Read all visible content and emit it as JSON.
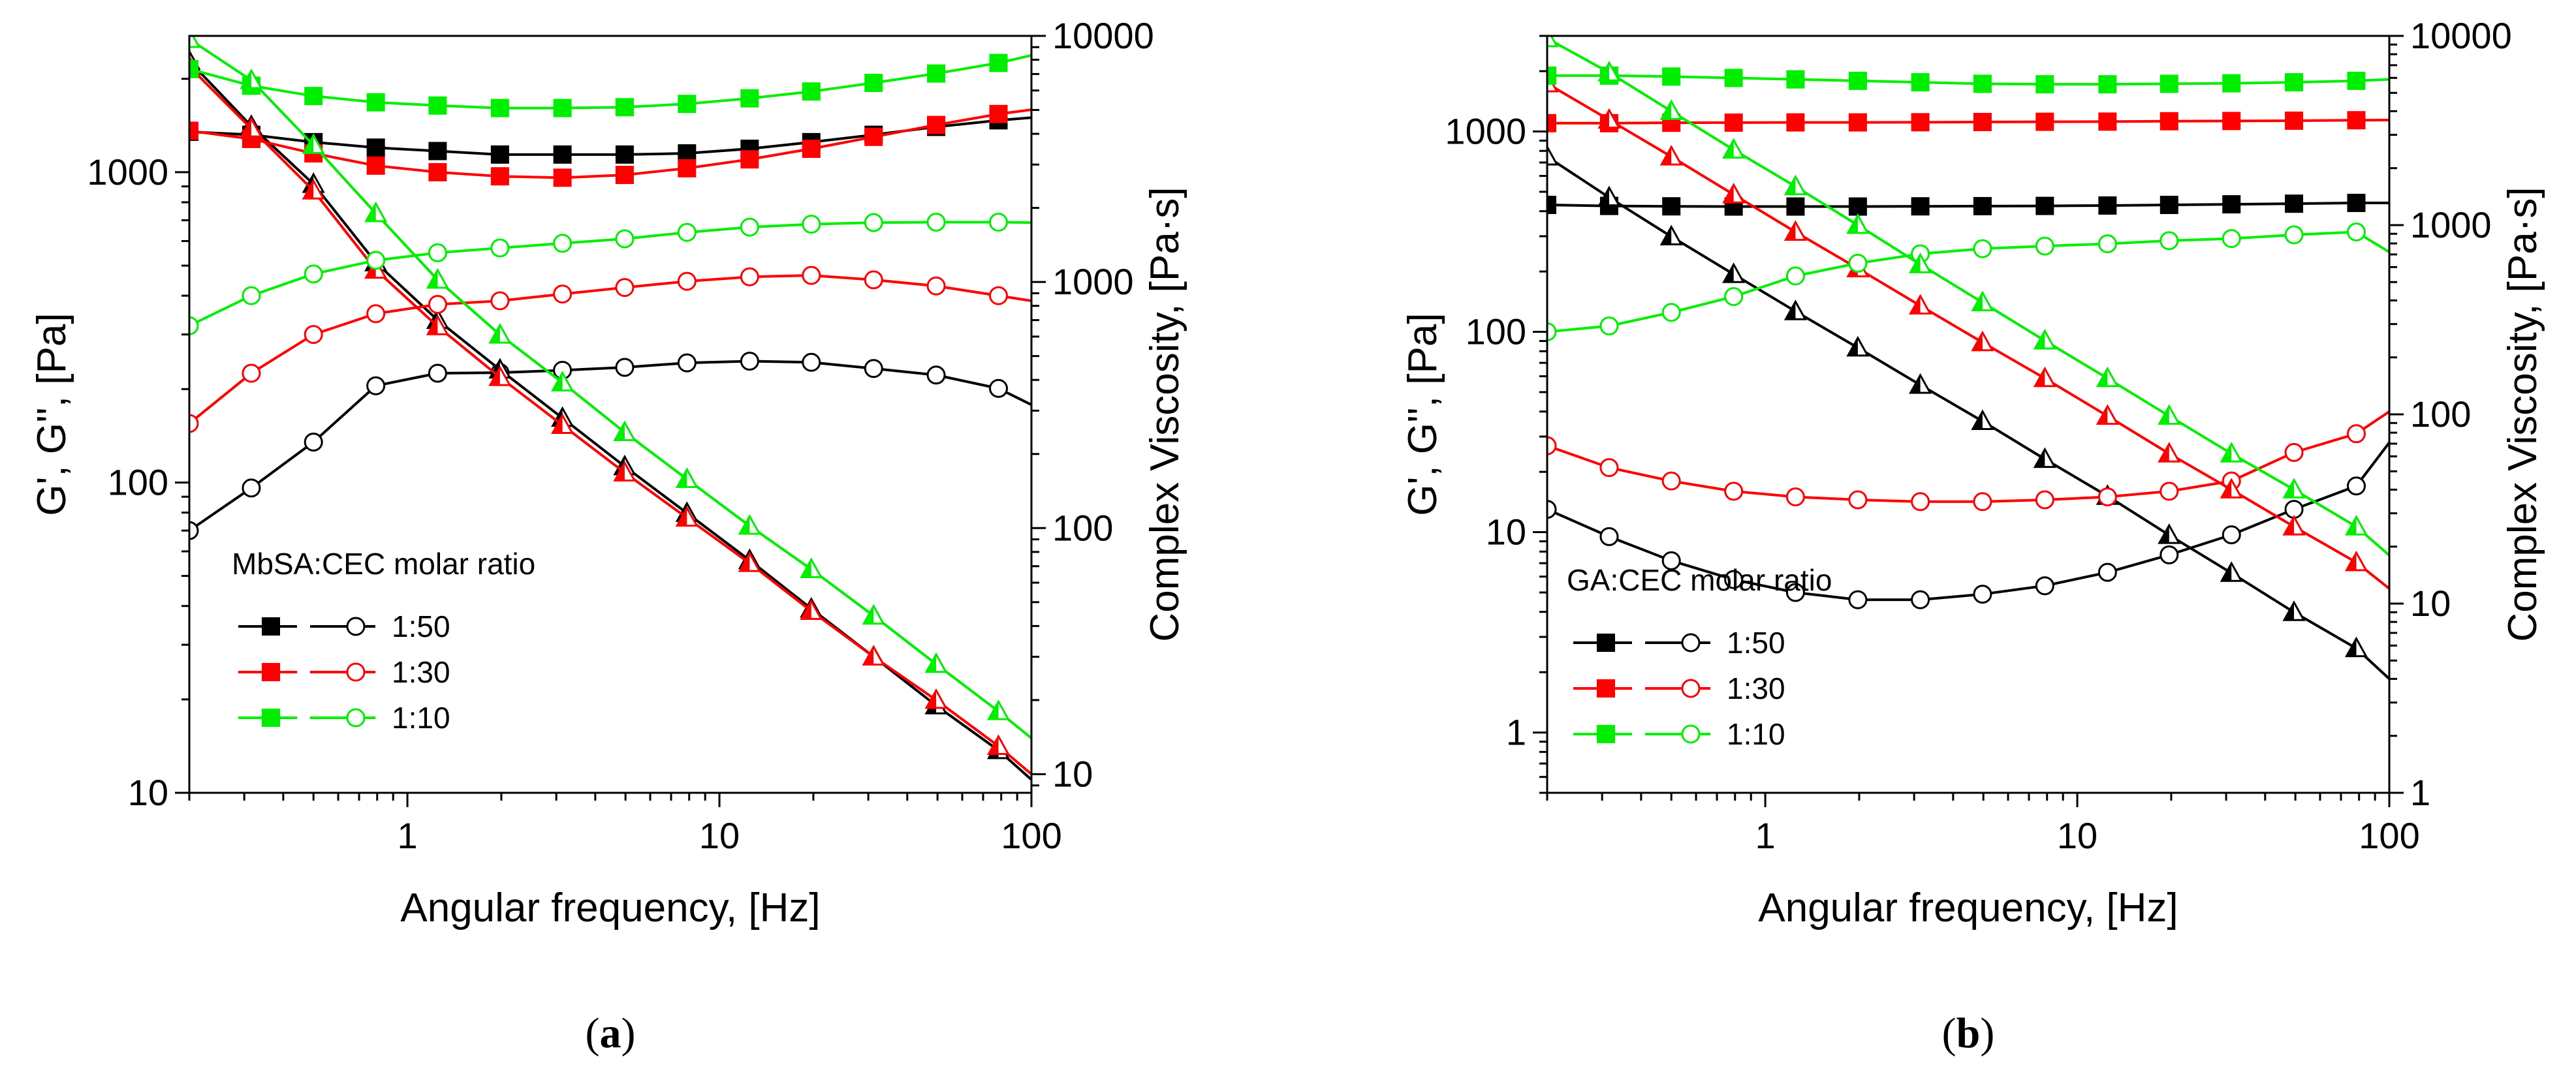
{
  "chart_data": [
    {
      "panel_label": "a",
      "type": "line",
      "title": "",
      "xlabel": "Angular frequency, [Hz]",
      "ylabel": "G', G'', [Pa]",
      "y2label": "Complex Viscosity, [Pa·s]",
      "x_scale": "log",
      "y_scale": "log",
      "y2_scale": "log",
      "xlim": [
        0.2,
        100
      ],
      "ylim": [
        10,
        2750
      ],
      "y2lim": [
        8.4,
        10000
      ],
      "x_ticks": [
        1,
        10,
        100
      ],
      "x_tick_labels": [
        "1",
        "10",
        "100"
      ],
      "y_ticks": [
        10,
        100,
        1000
      ],
      "y_tick_labels": [
        "10",
        "100",
        "1000"
      ],
      "y2_ticks": [
        10,
        100,
        1000,
        10000
      ],
      "y2_tick_labels": [
        "10",
        "100",
        "1000",
        "10000"
      ],
      "legend": {
        "title": "MbSA:CEC molar ratio",
        "position": "lower-left",
        "entries": [
          "1:50",
          "1:30",
          "1:10"
        ]
      },
      "x": [
        0.2,
        0.316,
        0.5,
        0.792,
        1.25,
        1.98,
        3.14,
        4.97,
        7.87,
        12.5,
        19.7,
        31.2,
        49.5,
        78.4,
        100
      ],
      "series": [
        {
          "name": "1:50",
          "quantity": "G'",
          "marker": "filled-square",
          "color": "#000000",
          "axis": "left",
          "values": [
            1350,
            1320,
            1250,
            1200,
            1170,
            1140,
            1140,
            1140,
            1150,
            1190,
            1250,
            1320,
            1400,
            1470,
            1500
          ]
        },
        {
          "name": "1:50",
          "quantity": "G''",
          "marker": "open-circle",
          "color": "#000000",
          "axis": "left",
          "values": [
            70,
            96,
            135,
            205,
            225,
            226,
            230,
            235,
            243,
            246,
            244,
            233,
            222,
            201,
            178
          ]
        },
        {
          "name": "1:50",
          "quantity": "complex viscosity",
          "marker": "half-filled-triangle",
          "color": "#000000",
          "axis": "right",
          "values": [
            7900,
            4300,
            2500,
            1200,
            700,
            440,
            280,
            178,
            115,
            74,
            47,
            30,
            19,
            12.5,
            9.5
          ]
        },
        {
          "name": "1:30",
          "quantity": "G'",
          "marker": "filled-square",
          "color": "#ff0000",
          "axis": "left",
          "values": [
            1360,
            1280,
            1150,
            1050,
            1000,
            970,
            960,
            980,
            1030,
            1100,
            1190,
            1300,
            1420,
            1540,
            1590
          ]
        },
        {
          "name": "1:30",
          "quantity": "G''",
          "marker": "open-circle",
          "color": "#ff0000",
          "axis": "left",
          "values": [
            155,
            225,
            300,
            350,
            375,
            385,
            405,
            425,
            445,
            460,
            465,
            450,
            430,
            400,
            385
          ]
        },
        {
          "name": "1:30",
          "quantity": "complex viscosity",
          "marker": "half-filled-triangle",
          "color": "#ff0000",
          "axis": "right",
          "values": [
            7500,
            4200,
            2350,
            1120,
            660,
            410,
            262,
            168,
            110,
            72,
            46,
            30,
            20,
            13,
            10
          ]
        },
        {
          "name": "1:10",
          "quantity": "G'",
          "marker": "filled-square",
          "color": "#00ee00",
          "axis": "left",
          "values": [
            2150,
            1900,
            1760,
            1680,
            1640,
            1610,
            1610,
            1620,
            1660,
            1730,
            1820,
            1940,
            2080,
            2250,
            2380
          ]
        },
        {
          "name": "1:10",
          "quantity": "G''",
          "marker": "open-circle",
          "color": "#00ee00",
          "axis": "left",
          "values": [
            320,
            400,
            470,
            520,
            550,
            570,
            590,
            610,
            640,
            665,
            680,
            688,
            690,
            690,
            688
          ]
        },
        {
          "name": "1:10",
          "quantity": "complex viscosity",
          "marker": "half-filled-triangle",
          "color": "#00ee00",
          "axis": "right",
          "values": [
            9700,
            6600,
            3600,
            1900,
            1020,
            610,
            390,
            245,
            158,
            102,
            68,
            44,
            28,
            18,
            14
          ]
        }
      ]
    },
    {
      "panel_label": "b",
      "type": "line",
      "title": "",
      "xlabel": "Angular frequency, [Hz]",
      "ylabel": "G', G'', [Pa]",
      "y2label": "Complex Viscosity, [Pa·s]",
      "x_scale": "log",
      "y_scale": "log",
      "y2_scale": "log",
      "xlim": [
        0.2,
        100
      ],
      "ylim": [
        0.5,
        3000
      ],
      "y2lim": [
        1,
        10000
      ],
      "x_ticks": [
        1,
        10,
        100
      ],
      "x_tick_labels": [
        "1",
        "10",
        "100"
      ],
      "y_ticks": [
        1,
        10,
        100,
        1000
      ],
      "y_tick_labels": [
        "1",
        "10",
        "100",
        "1000"
      ],
      "y2_ticks": [
        1,
        10,
        100,
        1000,
        10000
      ],
      "y2_tick_labels": [
        "1",
        "10",
        "100",
        "1000",
        "10000"
      ],
      "legend": {
        "title": "GA:CEC molar ratio",
        "position": "lower-left",
        "entries": [
          "1:50",
          "1:30",
          "1:10"
        ]
      },
      "x": [
        0.2,
        0.316,
        0.5,
        0.792,
        1.25,
        1.98,
        3.14,
        4.97,
        7.87,
        12.5,
        19.7,
        31.2,
        49.5,
        78.4,
        100
      ],
      "series": [
        {
          "name": "1:50",
          "quantity": "G'",
          "marker": "filled-square",
          "color": "#000000",
          "axis": "left",
          "values": [
            430,
            425,
            423,
            422,
            422,
            422,
            423,
            424,
            425,
            427,
            430,
            433,
            436,
            440,
            440
          ]
        },
        {
          "name": "1:50",
          "quantity": "G''",
          "marker": "open-circle",
          "color": "#000000",
          "axis": "left",
          "values": [
            13,
            9.5,
            7.2,
            5.8,
            5.0,
            4.6,
            4.6,
            4.9,
            5.4,
            6.3,
            7.7,
            9.7,
            13,
            17,
            28
          ]
        },
        {
          "name": "1:50",
          "quantity": "complex viscosity",
          "marker": "half-filled-triangle",
          "color": "#000000",
          "axis": "right",
          "values": [
            2300,
            1400,
            870,
            550,
            350,
            225,
            143,
            92,
            58,
            37,
            23,
            14.5,
            9,
            5.8,
            4
          ]
        },
        {
          "name": "1:30",
          "quantity": "G'",
          "marker": "filled-square",
          "color": "#ff0000",
          "axis": "left",
          "values": [
            1100,
            1100,
            1105,
            1107,
            1110,
            1110,
            1112,
            1115,
            1118,
            1120,
            1125,
            1128,
            1132,
            1138,
            1140
          ]
        },
        {
          "name": "1:30",
          "quantity": "G''",
          "marker": "open-circle",
          "color": "#ff0000",
          "axis": "left",
          "values": [
            27,
            21,
            18,
            16,
            15,
            14.5,
            14.2,
            14.2,
            14.5,
            15,
            16,
            18,
            25,
            31,
            40
          ]
        },
        {
          "name": "1:30",
          "quantity": "complex viscosity",
          "marker": "half-filled-triangle",
          "color": "#ff0000",
          "axis": "right",
          "values": [
            5600,
            3600,
            2300,
            1450,
            920,
            590,
            375,
            240,
            155,
            98,
            62,
            40,
            25.5,
            16.5,
            12
          ]
        },
        {
          "name": "1:10",
          "quantity": "G'",
          "marker": "filled-square",
          "color": "#00ee00",
          "axis": "left",
          "values": [
            1900,
            1900,
            1880,
            1850,
            1820,
            1790,
            1760,
            1730,
            1720,
            1720,
            1730,
            1740,
            1760,
            1790,
            1820
          ]
        },
        {
          "name": "1:10",
          "quantity": "G''",
          "marker": "open-circle",
          "color": "#00ee00",
          "axis": "left",
          "values": [
            100,
            107,
            125,
            150,
            190,
            220,
            245,
            260,
            268,
            275,
            285,
            292,
            305,
            315,
            250
          ]
        },
        {
          "name": "1:10",
          "quantity": "complex viscosity",
          "marker": "half-filled-triangle",
          "color": "#00ee00",
          "axis": "right",
          "values": [
            9700,
            6400,
            4000,
            2500,
            1600,
            1000,
            620,
            390,
            245,
            155,
            98,
            62,
            40,
            25.5,
            18
          ]
        }
      ]
    }
  ]
}
